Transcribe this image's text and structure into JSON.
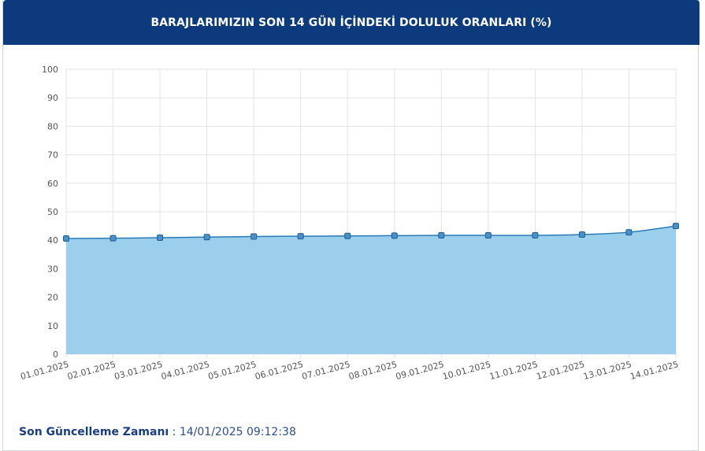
{
  "header": {
    "title": "BARAJLARIMIZIN SON 14 GÜN İÇİNDEKİ DOLULUK ORANLARI (%)"
  },
  "footer": {
    "label": "Son Güncelleme Zamanı",
    "separator": " : ",
    "value": "14/01/2025 09:12:38"
  },
  "colors": {
    "header_bg": "#0c3a7d",
    "line": "#2a7ab8",
    "area": "#9bcfeb",
    "point": "#4a90c8",
    "grid": "#e3e3e3"
  },
  "chart_data": {
    "type": "area",
    "title": "BARAJLARIMIZIN SON 14 GÜN İÇİNDEKİ DOLULUK ORANLARI (%)",
    "xlabel": "",
    "ylabel": "",
    "ylim": [
      0,
      100
    ],
    "yticks": [
      0,
      10,
      20,
      30,
      40,
      50,
      60,
      70,
      80,
      90,
      100
    ],
    "grid": true,
    "categories": [
      "01.01.2025",
      "02.01.2025",
      "03.01.2025",
      "04.01.2025",
      "05.01.2025",
      "06.01.2025",
      "07.01.2025",
      "08.01.2025",
      "09.01.2025",
      "10.01.2025",
      "11.01.2025",
      "12.01.2025",
      "13.01.2025",
      "14.01.2025"
    ],
    "series": [
      {
        "values": [
          40.6,
          40.7,
          40.9,
          41.1,
          41.3,
          41.4,
          41.5,
          41.6,
          41.7,
          41.7,
          41.7,
          42.0,
          42.8,
          45.0
        ]
      }
    ]
  }
}
